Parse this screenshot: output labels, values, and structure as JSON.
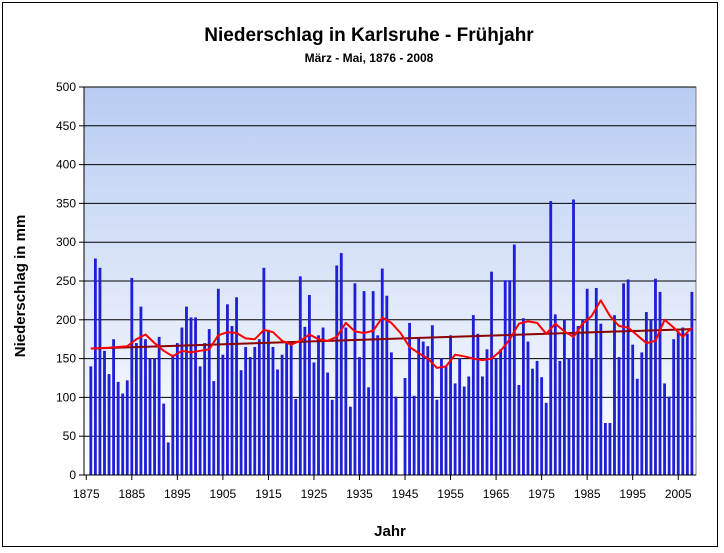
{
  "chart_data": {
    "type": "bar",
    "title": "Niederschlag in Karlsruhe - Frühjahr",
    "subtitle": "März - Mai, 1876 - 2008",
    "xlabel": "Jahr",
    "ylabel": "Niederschlag in mm",
    "ylim": [
      0,
      500
    ],
    "yticks": [
      0,
      50,
      100,
      150,
      200,
      250,
      300,
      350,
      400,
      450,
      500
    ],
    "xticks": [
      1875,
      1885,
      1895,
      1905,
      1915,
      1925,
      1935,
      1945,
      1955,
      1965,
      1975,
      1985,
      1995,
      2005
    ],
    "grid": true,
    "legend": "none",
    "colors": {
      "bars": "#1f1fd6",
      "moving_average": "#ff0000",
      "trend": "#8b0000",
      "plot_top": "#b8ccf2",
      "plot_bottom": "#ffffff"
    },
    "x": [
      1876,
      1877,
      1878,
      1879,
      1880,
      1881,
      1882,
      1883,
      1884,
      1885,
      1886,
      1887,
      1888,
      1889,
      1890,
      1891,
      1892,
      1893,
      1894,
      1895,
      1896,
      1897,
      1898,
      1899,
      1900,
      1901,
      1902,
      1903,
      1904,
      1905,
      1906,
      1907,
      1908,
      1909,
      1910,
      1911,
      1912,
      1913,
      1914,
      1915,
      1916,
      1917,
      1918,
      1919,
      1920,
      1921,
      1922,
      1923,
      1924,
      1925,
      1926,
      1927,
      1928,
      1929,
      1930,
      1931,
      1932,
      1933,
      1934,
      1935,
      1936,
      1937,
      1938,
      1939,
      1940,
      1941,
      1942,
      1943,
      1944,
      1945,
      1946,
      1947,
      1948,
      1949,
      1950,
      1951,
      1952,
      1953,
      1954,
      1955,
      1956,
      1957,
      1958,
      1959,
      1960,
      1961,
      1962,
      1963,
      1964,
      1965,
      1966,
      1967,
      1968,
      1969,
      1970,
      1971,
      1972,
      1973,
      1974,
      1975,
      1976,
      1977,
      1978,
      1979,
      1980,
      1981,
      1982,
      1983,
      1984,
      1985,
      1986,
      1987,
      1988,
      1989,
      1990,
      1991,
      1992,
      1993,
      1994,
      1995,
      1996,
      1997,
      1998,
      1999,
      2000,
      2001,
      2002,
      2003,
      2004,
      2005,
      2006,
      2007,
      2008
    ],
    "series": [
      {
        "values": [
          140,
          279,
          267,
          160,
          130,
          175,
          120,
          105,
          122,
          254,
          170,
          217,
          175,
          150,
          150,
          178,
          92,
          42,
          155,
          170,
          190,
          217,
          203,
          203,
          140,
          170,
          188,
          121,
          240,
          155,
          220,
          192,
          229,
          135,
          165,
          152,
          165,
          175,
          267,
          187,
          165,
          136,
          155,
          170,
          170,
          98,
          256,
          191,
          232,
          145,
          180,
          190,
          132,
          97,
          270,
          286,
          190,
          88,
          247,
          152,
          237,
          113,
          237,
          180,
          266,
          231,
          158,
          101,
          0,
          125,
          196,
          102,
          176,
          172,
          166,
          193,
          97,
          150,
          140,
          180,
          118,
          150,
          114,
          127,
          206,
          182,
          127,
          162,
          262,
          150,
          162,
          251,
          251,
          297,
          116,
          202,
          172,
          137,
          147,
          126,
          93,
          353,
          207,
          147,
          200,
          150,
          355,
          192,
          200,
          240,
          150,
          241,
          195,
          67,
          67,
          206,
          152,
          247,
          252,
          168,
          124,
          158,
          210,
          200,
          253,
          236,
          118,
          101,
          175,
          185,
          190,
          182,
          236
        ]
      }
    ],
    "moving_average": [
      {
        "x": 1876,
        "y": 163
      },
      {
        "x": 1880,
        "y": 164
      },
      {
        "x": 1884,
        "y": 166
      },
      {
        "x": 1886,
        "y": 175
      },
      {
        "x": 1888,
        "y": 181
      },
      {
        "x": 1890,
        "y": 170
      },
      {
        "x": 1892,
        "y": 160
      },
      {
        "x": 1894,
        "y": 153
      },
      {
        "x": 1896,
        "y": 160
      },
      {
        "x": 1898,
        "y": 158
      },
      {
        "x": 1900,
        "y": 160
      },
      {
        "x": 1902,
        "y": 162
      },
      {
        "x": 1904,
        "y": 180
      },
      {
        "x": 1906,
        "y": 184
      },
      {
        "x": 1908,
        "y": 183
      },
      {
        "x": 1910,
        "y": 176
      },
      {
        "x": 1912,
        "y": 175
      },
      {
        "x": 1914,
        "y": 187
      },
      {
        "x": 1916,
        "y": 184
      },
      {
        "x": 1918,
        "y": 173
      },
      {
        "x": 1920,
        "y": 168
      },
      {
        "x": 1922,
        "y": 173
      },
      {
        "x": 1924,
        "y": 181
      },
      {
        "x": 1926,
        "y": 175
      },
      {
        "x": 1928,
        "y": 173
      },
      {
        "x": 1930,
        "y": 178
      },
      {
        "x": 1932,
        "y": 196
      },
      {
        "x": 1934,
        "y": 185
      },
      {
        "x": 1936,
        "y": 183
      },
      {
        "x": 1938,
        "y": 186
      },
      {
        "x": 1940,
        "y": 203
      },
      {
        "x": 1942,
        "y": 196
      },
      {
        "x": 1944,
        "y": 183
      },
      {
        "x": 1946,
        "y": 165
      },
      {
        "x": 1948,
        "y": 157
      },
      {
        "x": 1950,
        "y": 150
      },
      {
        "x": 1952,
        "y": 138
      },
      {
        "x": 1954,
        "y": 140
      },
      {
        "x": 1956,
        "y": 155
      },
      {
        "x": 1958,
        "y": 153
      },
      {
        "x": 1960,
        "y": 150
      },
      {
        "x": 1962,
        "y": 148
      },
      {
        "x": 1964,
        "y": 150
      },
      {
        "x": 1966,
        "y": 160
      },
      {
        "x": 1968,
        "y": 175
      },
      {
        "x": 1970,
        "y": 195
      },
      {
        "x": 1972,
        "y": 198
      },
      {
        "x": 1974,
        "y": 196
      },
      {
        "x": 1976,
        "y": 182
      },
      {
        "x": 1978,
        "y": 195
      },
      {
        "x": 1980,
        "y": 185
      },
      {
        "x": 1982,
        "y": 178
      },
      {
        "x": 1984,
        "y": 195
      },
      {
        "x": 1986,
        "y": 205
      },
      {
        "x": 1988,
        "y": 225
      },
      {
        "x": 1990,
        "y": 205
      },
      {
        "x": 1992,
        "y": 192
      },
      {
        "x": 1994,
        "y": 190
      },
      {
        "x": 1996,
        "y": 180
      },
      {
        "x": 1998,
        "y": 170
      },
      {
        "x": 2000,
        "y": 173
      },
      {
        "x": 2002,
        "y": 200
      },
      {
        "x": 2004,
        "y": 190
      },
      {
        "x": 2006,
        "y": 178
      },
      {
        "x": 2008,
        "y": 190
      }
    ],
    "trend": [
      {
        "x": 1876,
        "y": 163
      },
      {
        "x": 2008,
        "y": 188
      }
    ]
  }
}
